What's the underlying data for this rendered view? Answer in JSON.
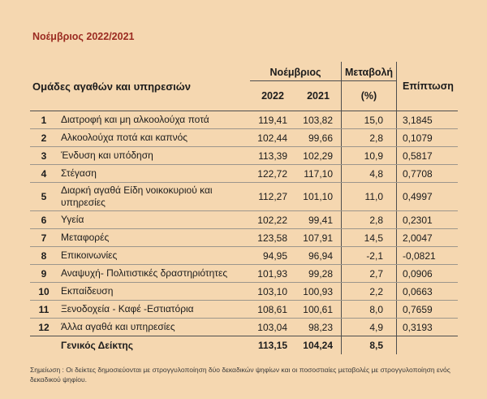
{
  "page": {
    "title": "Νοέμβριος 2022/2021",
    "note": "Σημείωση : Οι δείκτες δημοσιεύονται με στρογγυλοποίηση δύο δεκαδικών ψηφίων και οι ποσοστιαίες μεταβολές με στρογγυλοποίηση ενός δεκαδικού ψηφίου."
  },
  "table": {
    "headers": {
      "groups": "Ομάδες αγαθών και υπηρεσιών",
      "month_group": "Νοέμβριος",
      "year_2022": "2022",
      "year_2021": "2021",
      "change": "Μεταβολή",
      "change_unit": "(%)",
      "impact": "Επίπτωση"
    },
    "rows": [
      {
        "num": "1",
        "label": "Διατροφή και μη αλκοολούχα ποτά",
        "v2022": "119,41",
        "v2021": "103,82",
        "pct": "15,0",
        "impact": "3,1845"
      },
      {
        "num": "2",
        "label": "Αλκοολούχα ποτά και καπνός",
        "v2022": "102,44",
        "v2021": "99,66",
        "pct": "2,8",
        "impact": "0,1079"
      },
      {
        "num": "3",
        "label": "Ένδυση και υπόδηση",
        "v2022": "113,39",
        "v2021": "102,29",
        "pct": "10,9",
        "impact": "0,5817"
      },
      {
        "num": "4",
        "label": "Στέγαση",
        "v2022": "122,72",
        "v2021": "117,10",
        "pct": "4,8",
        "impact": "0,7708"
      },
      {
        "num": "5",
        "label": "Διαρκή αγαθά Είδη νοικοκυριού και υπηρεσίες",
        "v2022": "112,27",
        "v2021": "101,10",
        "pct": "11,0",
        "impact": "0,4997"
      },
      {
        "num": "6",
        "label": "Υγεία",
        "v2022": "102,22",
        "v2021": "99,41",
        "pct": "2,8",
        "impact": "0,2301"
      },
      {
        "num": "7",
        "label": "Μεταφορές",
        "v2022": "123,58",
        "v2021": "107,91",
        "pct": "14,5",
        "impact": "2,0047"
      },
      {
        "num": "8",
        "label": "Επικοινωνίες",
        "v2022": "94,95",
        "v2021": "96,94",
        "pct": "-2,1",
        "impact": "-0,0821"
      },
      {
        "num": "9",
        "label": "Αναψυχή- Πολιτιστικές δραστηριότητες",
        "v2022": "101,93",
        "v2021": "99,28",
        "pct": "2,7",
        "impact": "0,0906"
      },
      {
        "num": "10",
        "label": "Εκπαίδευση",
        "v2022": "103,10",
        "v2021": "100,93",
        "pct": "2,2",
        "impact": "0,0663"
      },
      {
        "num": "11",
        "label": "Ξενοδοχεία - Καφέ  -Εστιατόρια",
        "v2022": "108,61",
        "v2021": "100,61",
        "pct": "8,0",
        "impact": "0,7659"
      },
      {
        "num": "12",
        "label": "Άλλα αγαθά και υπηρεσίες",
        "v2022": "103,04",
        "v2021": "98,23",
        "pct": "4,9",
        "impact": "0,3193"
      }
    ],
    "total": {
      "label": "Γενικός Δείκτης",
      "v2022": "113,15",
      "v2021": "104,24",
      "pct": "8,5",
      "impact": ""
    }
  },
  "colors": {
    "background": "#f5d7b0",
    "title_red": "#9b2b21",
    "line_dark": "#4e4e4e",
    "line_light": "#9c968c"
  }
}
